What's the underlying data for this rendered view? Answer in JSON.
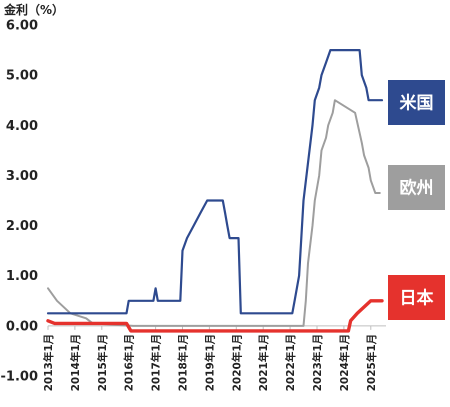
{
  "chart_data": {
    "type": "line",
    "ylabel": "金利（%）",
    "ylim": [
      -1.0,
      6.0
    ],
    "yticks": [
      -1.0,
      0.0,
      1.0,
      2.0,
      3.0,
      4.0,
      5.0,
      6.0
    ],
    "ytick_labels": [
      "-1.00",
      "0.00",
      "1.00",
      "2.00",
      "3.00",
      "4.00",
      "5.00",
      "6.00"
    ],
    "xlim": [
      "2013-01",
      "2025-06"
    ],
    "xticks": [
      "2013-01",
      "2014-01",
      "2015-01",
      "2016-01",
      "2017-01",
      "2018-01",
      "2019-01",
      "2020-01",
      "2021-01",
      "2022-01",
      "2023-01",
      "2024-01",
      "2025-01"
    ],
    "xtick_labels": [
      "2013年1月",
      "2014年1月",
      "2015年1月",
      "2016年1月",
      "2017年1月",
      "2018年1月",
      "2019年1月",
      "2020年1月",
      "2021年1月",
      "2022年1月",
      "2023年1月",
      "2024年1月",
      "2025年1月"
    ],
    "grid": false,
    "legend_placement": "right, labels beside line ends",
    "series": [
      {
        "name": "米国",
        "color": "#2E4A8F",
        "points": [
          [
            "2013-01",
            0.25
          ],
          [
            "2015-12",
            0.25
          ],
          [
            "2016-01",
            0.5
          ],
          [
            "2016-12",
            0.5
          ],
          [
            "2017-01",
            0.75
          ],
          [
            "2017-02",
            0.5
          ],
          [
            "2017-12",
            0.5
          ],
          [
            "2018-01",
            1.5
          ],
          [
            "2018-03",
            1.75
          ],
          [
            "2018-06",
            2.0
          ],
          [
            "2018-09",
            2.25
          ],
          [
            "2018-12",
            2.5
          ],
          [
            "2019-07",
            2.5
          ],
          [
            "2019-08",
            2.25
          ],
          [
            "2019-09",
            2.0
          ],
          [
            "2019-10",
            1.75
          ],
          [
            "2020-02",
            1.75
          ],
          [
            "2020-03",
            0.25
          ],
          [
            "2022-02",
            0.25
          ],
          [
            "2022-03",
            0.5
          ],
          [
            "2022-05",
            1.0
          ],
          [
            "2022-06",
            1.75
          ],
          [
            "2022-07",
            2.5
          ],
          [
            "2022-09",
            3.25
          ],
          [
            "2022-11",
            4.0
          ],
          [
            "2022-12",
            4.5
          ],
          [
            "2023-02",
            4.75
          ],
          [
            "2023-03",
            5.0
          ],
          [
            "2023-05",
            5.25
          ],
          [
            "2023-07",
            5.5
          ],
          [
            "2024-08",
            5.5
          ],
          [
            "2024-09",
            5.0
          ],
          [
            "2024-11",
            4.75
          ],
          [
            "2024-12",
            4.5
          ],
          [
            "2025-06",
            4.5
          ]
        ]
      },
      {
        "name": "欧州",
        "color": "#9E9E9E",
        "points": [
          [
            "2013-01",
            0.75
          ],
          [
            "2013-05",
            0.5
          ],
          [
            "2013-11",
            0.25
          ],
          [
            "2014-06",
            0.15
          ],
          [
            "2014-09",
            0.05
          ],
          [
            "2016-03",
            0.0
          ],
          [
            "2022-07",
            0.0
          ],
          [
            "2022-08",
            0.5
          ],
          [
            "2022-09",
            1.25
          ],
          [
            "2022-11",
            2.0
          ],
          [
            "2022-12",
            2.5
          ],
          [
            "2023-02",
            3.0
          ],
          [
            "2023-03",
            3.5
          ],
          [
            "2023-05",
            3.75
          ],
          [
            "2023-06",
            4.0
          ],
          [
            "2023-08",
            4.25
          ],
          [
            "2023-09",
            4.5
          ],
          [
            "2024-06",
            4.25
          ],
          [
            "2024-09",
            3.65
          ],
          [
            "2024-10",
            3.4
          ],
          [
            "2024-12",
            3.15
          ],
          [
            "2025-01",
            2.9
          ],
          [
            "2025-03",
            2.65
          ],
          [
            "2025-05",
            2.65
          ]
        ]
      },
      {
        "name": "日本",
        "color": "#E5322D",
        "points": [
          [
            "2013-01",
            0.1
          ],
          [
            "2013-04",
            0.05
          ],
          [
            "2015-12",
            0.05
          ],
          [
            "2016-02",
            -0.1
          ],
          [
            "2024-03",
            -0.1
          ],
          [
            "2024-04",
            0.1
          ],
          [
            "2024-07",
            0.25
          ],
          [
            "2025-01",
            0.5
          ],
          [
            "2025-06",
            0.5
          ]
        ]
      }
    ]
  }
}
